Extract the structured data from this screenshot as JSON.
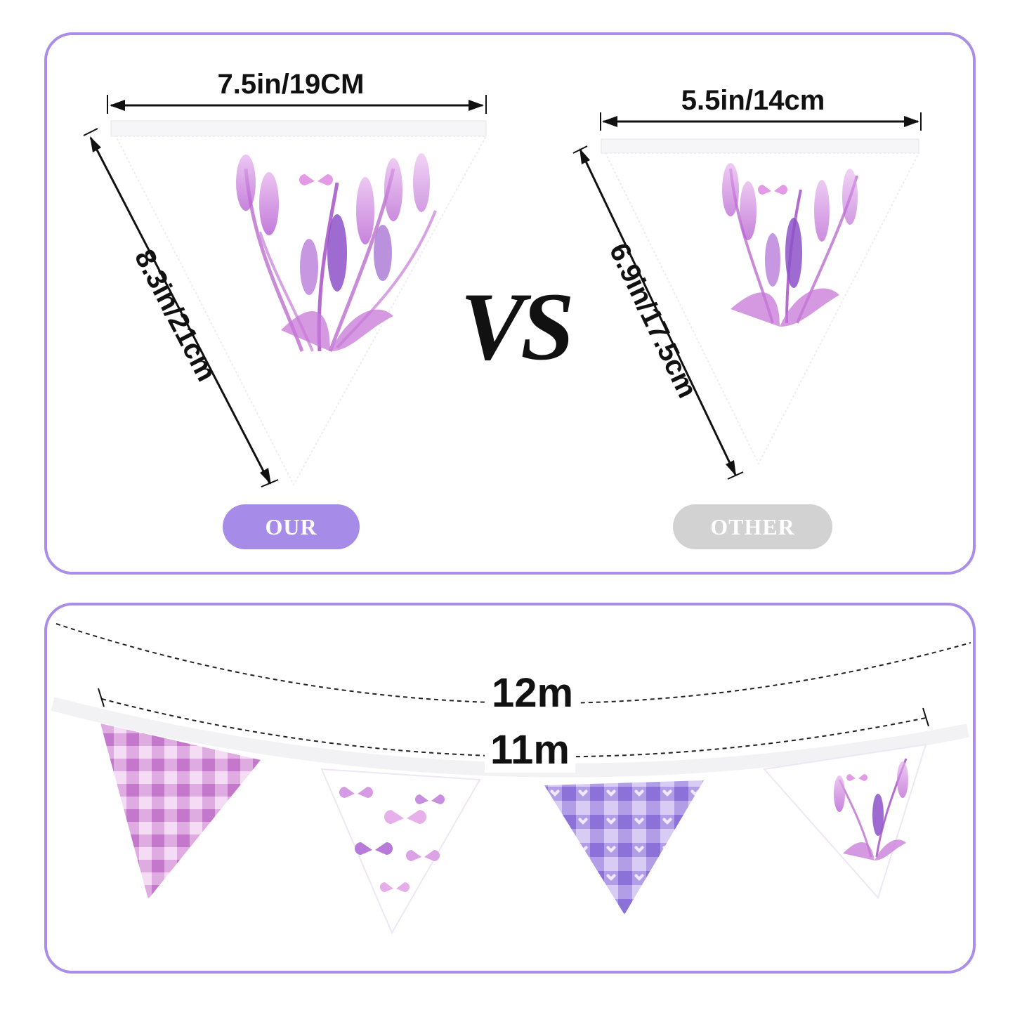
{
  "comparison": {
    "ours": {
      "width_label": "7.5in/19CM",
      "side_label": "8.3in/21cm",
      "badge": "OUR"
    },
    "vs_label": "VS",
    "other": {
      "width_label": "5.5in/14cm",
      "side_label": "6.9in/17.5cm",
      "badge": "OTHER"
    }
  },
  "length": {
    "total_label": "12m",
    "flag_span_label": "11m"
  },
  "pennants": [
    {
      "pattern": "pink-gingham"
    },
    {
      "pattern": "butterflies"
    },
    {
      "pattern": "purple-gingham-hearts"
    },
    {
      "pattern": "lavender"
    }
  ],
  "colors": {
    "border": "#a98de6",
    "our_badge": "#a78be8",
    "other_badge": "#d2d2d2"
  }
}
